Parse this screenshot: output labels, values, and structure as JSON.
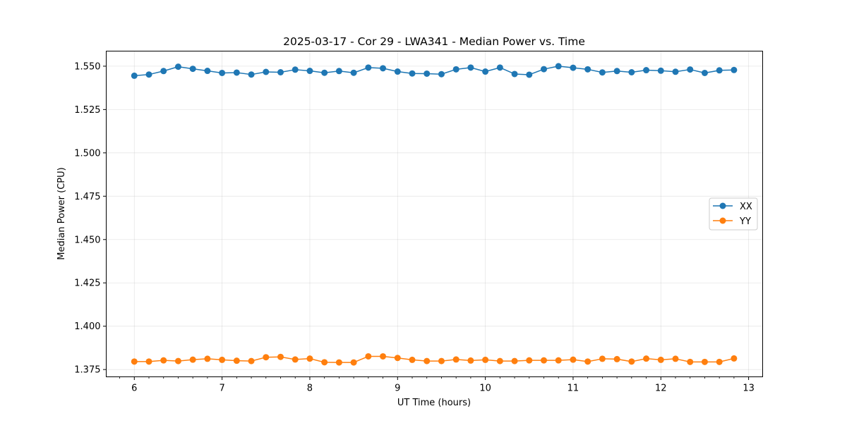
{
  "chart_data": {
    "type": "line",
    "title": "2025-03-17 - Cor 29 - LWA341 - Median Power vs. Time",
    "xlabel": "UT Time (hours)",
    "ylabel": "Median Power (CPU)",
    "xlim": [
      5.68,
      13.16
    ],
    "ylim": [
      1.3708,
      1.5587
    ],
    "xticks": [
      6,
      7,
      8,
      9,
      10,
      11,
      12,
      13
    ],
    "xtick_labels": [
      "6",
      "7",
      "8",
      "9",
      "10",
      "11",
      "12",
      "13"
    ],
    "yticks": [
      1.375,
      1.4,
      1.425,
      1.45,
      1.475,
      1.5,
      1.525,
      1.55
    ],
    "ytick_labels": [
      "1.375",
      "1.400",
      "1.425",
      "1.450",
      "1.475",
      "1.500",
      "1.525",
      "1.550"
    ],
    "grid": true,
    "legend_position": "center-right",
    "x": [
      6.0,
      6.1667,
      6.3333,
      6.5,
      6.6667,
      6.8333,
      7.0,
      7.1667,
      7.3333,
      7.5,
      7.6667,
      7.8333,
      8.0,
      8.1667,
      8.3333,
      8.5,
      8.6667,
      8.8333,
      9.0,
      9.1667,
      9.3333,
      9.5,
      9.6667,
      9.8333,
      10.0,
      10.1667,
      10.3333,
      10.5,
      10.6667,
      10.8333,
      11.0,
      11.1667,
      11.3333,
      11.5,
      11.6667,
      11.8333,
      12.0,
      12.1667,
      12.3333,
      12.5,
      12.6667,
      12.8333
    ],
    "series": [
      {
        "name": "XX",
        "color": "#1f77b4",
        "values": [
          1.5445,
          1.5452,
          1.5472,
          1.5497,
          1.5485,
          1.5473,
          1.5461,
          1.5463,
          1.5452,
          1.5467,
          1.5465,
          1.548,
          1.5473,
          1.5462,
          1.5472,
          1.5462,
          1.5492,
          1.5488,
          1.5469,
          1.5458,
          1.5457,
          1.5454,
          1.5482,
          1.5492,
          1.5469,
          1.5492,
          1.5455,
          1.5451,
          1.5483,
          1.55,
          1.5491,
          1.5482,
          1.5464,
          1.5472,
          1.5465,
          1.5477,
          1.5474,
          1.5468,
          1.5481,
          1.5461,
          1.5476,
          1.5478
        ]
      },
      {
        "name": "YY",
        "color": "#ff7f0e",
        "values": [
          1.3796,
          1.3796,
          1.3803,
          1.3799,
          1.3807,
          1.3812,
          1.3806,
          1.3801,
          1.3799,
          1.3821,
          1.3823,
          1.3808,
          1.3813,
          1.3792,
          1.3791,
          1.3791,
          1.3826,
          1.3826,
          1.3817,
          1.3806,
          1.3799,
          1.3799,
          1.3808,
          1.3802,
          1.3806,
          1.3799,
          1.3799,
          1.3803,
          1.3803,
          1.3803,
          1.3807,
          1.3796,
          1.3812,
          1.381,
          1.3796,
          1.3813,
          1.3806,
          1.3812,
          1.3794,
          1.3794,
          1.3794,
          1.3814
        ]
      }
    ]
  }
}
